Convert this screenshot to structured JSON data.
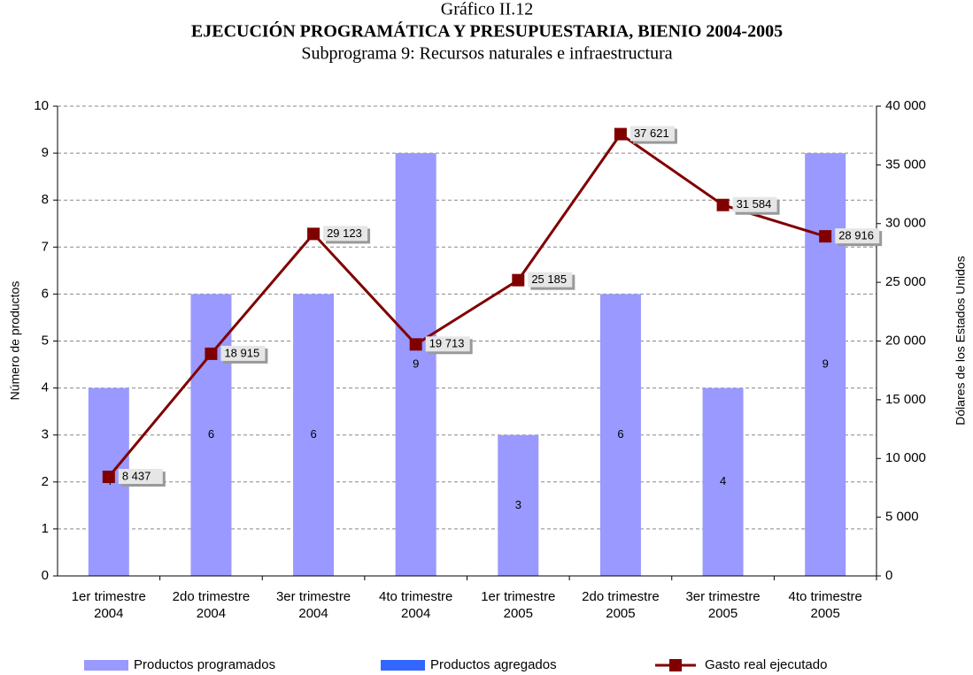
{
  "chart_data": {
    "type": "bar_line",
    "pretitle": "Gráfico II.12",
    "title": "EJECUCIÓN PROGRAMÁTICA Y PRESUPUESTARIA, BIENIO 2004-2005",
    "subtitle": "Subprograma 9: Recursos naturales e infraestructura",
    "ylabel": "Número de productos",
    "y2label": "Dólares de los Estados Unidos",
    "categories": [
      "1er trimestre 2004",
      "2do trimestre 2004",
      "3er trimestre 2004",
      "4to trimestre 2004",
      "1er trimestre 2005",
      "2do trimestre 2005",
      "3er trimestre 2005",
      "4to trimestre 2005"
    ],
    "series": [
      {
        "name": "Productos programados",
        "color": "#9999ff",
        "kind": "bar",
        "values": [
          4,
          6,
          6,
          9,
          3,
          6,
          4,
          9
        ]
      },
      {
        "name": "Productos agregados",
        "color": "#3366ff",
        "kind": "bar",
        "values": [
          0,
          0,
          0,
          0,
          0,
          0,
          0,
          0
        ]
      },
      {
        "name": "Gasto real ejecutado",
        "color": "#800000",
        "kind": "line",
        "axis": "y2",
        "values": [
          8437,
          18915,
          29123,
          19713,
          25185,
          37621,
          31584,
          28916
        ],
        "value_labels": [
          "8 437",
          "18 915",
          "29 123",
          "19 713",
          "25 185",
          "37 621",
          "31 584",
          "28 916"
        ]
      }
    ],
    "ylim": [
      0,
      10
    ],
    "yticks": [
      0,
      1,
      2,
      3,
      4,
      5,
      6,
      7,
      8,
      9,
      10
    ],
    "y2lim": [
      0,
      40000
    ],
    "y2ticks": [
      0,
      {
        "value": 5000,
        "label": "5 000"
      },
      {
        "value": 10000,
        "label": "10 000"
      },
      {
        "value": 15000,
        "label": "15 000"
      },
      {
        "value": 20000,
        "label": "20 000"
      },
      {
        "value": 25000,
        "label": "25 000"
      },
      {
        "value": 30000,
        "label": "30 000"
      },
      {
        "value": 35000,
        "label": "35 000"
      },
      {
        "value": 40000,
        "label": "40 000"
      }
    ],
    "grid": true,
    "legend": "bottom"
  }
}
